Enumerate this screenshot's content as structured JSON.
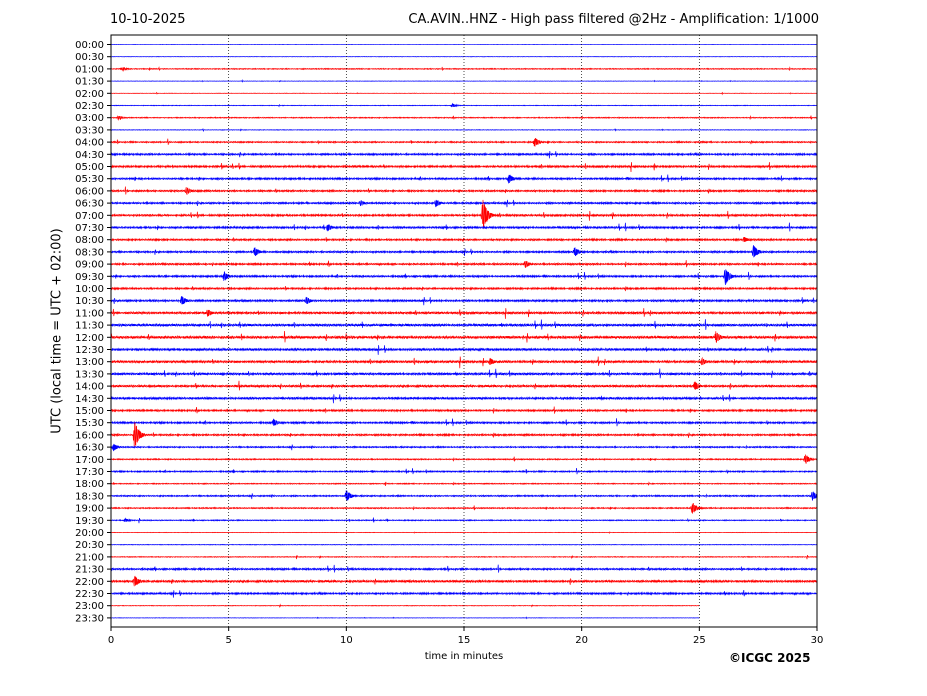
{
  "header": {
    "date": "10-10-2025",
    "title": "CA.AVIN..HNZ - High pass filtered @2Hz - Amplification: 1/1000"
  },
  "footer": {
    "credit": "©ICGC 2025"
  },
  "colors": {
    "trace_a": "#ff0000",
    "trace_b": "#0000ff",
    "grid": "#000000",
    "axes": "#000000"
  },
  "chart_data": {
    "type": "helicorder",
    "xlabel": "time in minutes",
    "ylabel": "UTC (local time = UTC + 02:00)",
    "xlim": [
      0,
      30
    ],
    "xticks": [
      0,
      5,
      10,
      15,
      20,
      25,
      30
    ],
    "grid": "vertical dotted lines at 5-minute intervals",
    "rows": [
      "00:00",
      "00:30",
      "01:00",
      "01:30",
      "02:00",
      "02:30",
      "03:00",
      "03:30",
      "04:00",
      "04:30",
      "05:00",
      "05:30",
      "06:00",
      "06:30",
      "07:00",
      "07:30",
      "08:00",
      "08:30",
      "09:00",
      "09:30",
      "10:00",
      "10:30",
      "11:00",
      "11:30",
      "12:00",
      "12:30",
      "13:00",
      "13:30",
      "14:00",
      "14:30",
      "15:00",
      "15:30",
      "16:00",
      "16:30",
      "17:00",
      "17:30",
      "18:00",
      "18:30",
      "19:00",
      "19:30",
      "20:00",
      "20:30",
      "21:00",
      "21:30",
      "22:00",
      "22:30",
      "23:00",
      "23:30"
    ],
    "row_colors": [
      "trace_b",
      "trace_b",
      "trace_a",
      "trace_b",
      "trace_a",
      "trace_b",
      "trace_a",
      "trace_b",
      "trace_a",
      "trace_b",
      "trace_a",
      "trace_b",
      "trace_a",
      "trace_b",
      "trace_a",
      "trace_b",
      "trace_a",
      "trace_b",
      "trace_a",
      "trace_b",
      "trace_a",
      "trace_b",
      "trace_a",
      "trace_b",
      "trace_a",
      "trace_b",
      "trace_a",
      "trace_b",
      "trace_a",
      "trace_b",
      "trace_a",
      "trace_b",
      "trace_a",
      "trace_b",
      "trace_a",
      "trace_b",
      "trace_a",
      "trace_b",
      "trace_a",
      "trace_b",
      "trace_a",
      "trace_b",
      "trace_a",
      "trace_b",
      "trace_a",
      "trace_b",
      "trace_a",
      "trace_b"
    ],
    "noise_level": [
      0.1,
      0.2,
      0.5,
      0.2,
      0.2,
      0.3,
      0.5,
      0.3,
      0.7,
      0.9,
      1.0,
      0.9,
      0.9,
      0.9,
      1.0,
      1.0,
      0.9,
      0.9,
      0.9,
      0.9,
      0.9,
      1.0,
      1.1,
      1.2,
      1.3,
      1.2,
      1.2,
      1.1,
      1.1,
      1.1,
      0.9,
      0.9,
      0.9,
      0.7,
      0.6,
      0.7,
      0.5,
      0.7,
      0.6,
      0.5,
      0.2,
      0.3,
      0.4,
      0.9,
      1.1,
      0.9,
      0.3,
      0.2
    ],
    "row_end_minutes": [
      30,
      30,
      30,
      30,
      30,
      30,
      30,
      30,
      30,
      30,
      30,
      30,
      30,
      30,
      30,
      30,
      30,
      30,
      30,
      30,
      30,
      30,
      30,
      30,
      30,
      30,
      30,
      30,
      30,
      30,
      30,
      30,
      30,
      30,
      30,
      30,
      30,
      30,
      30,
      30,
      30,
      30,
      30,
      30,
      30,
      30,
      25,
      25
    ],
    "events": [
      {
        "row": "01:00",
        "minute": 0.5,
        "amp": 2
      },
      {
        "row": "02:30",
        "minute": 14.5,
        "amp": 2
      },
      {
        "row": "03:00",
        "minute": 0.3,
        "amp": 2
      },
      {
        "row": "04:00",
        "minute": 18.0,
        "amp": 5
      },
      {
        "row": "05:30",
        "minute": 16.9,
        "amp": 5
      },
      {
        "row": "06:00",
        "minute": 3.2,
        "amp": 4
      },
      {
        "row": "06:30",
        "minute": 10.6,
        "amp": 3
      },
      {
        "row": "06:30",
        "minute": 13.8,
        "amp": 4
      },
      {
        "row": "07:00",
        "minute": 15.8,
        "amp": 16
      },
      {
        "row": "07:30",
        "minute": 9.2,
        "amp": 4
      },
      {
        "row": "08:00",
        "minute": 26.9,
        "amp": 3
      },
      {
        "row": "08:30",
        "minute": 6.1,
        "amp": 5
      },
      {
        "row": "08:30",
        "minute": 19.7,
        "amp": 5
      },
      {
        "row": "08:30",
        "minute": 27.3,
        "amp": 7
      },
      {
        "row": "09:00",
        "minute": 17.6,
        "amp": 4
      },
      {
        "row": "09:30",
        "minute": 4.8,
        "amp": 5
      },
      {
        "row": "09:30",
        "minute": 26.1,
        "amp": 9
      },
      {
        "row": "10:30",
        "minute": 3.0,
        "amp": 5
      },
      {
        "row": "10:30",
        "minute": 8.3,
        "amp": 4
      },
      {
        "row": "11:00",
        "minute": 4.1,
        "amp": 4
      },
      {
        "row": "12:00",
        "minute": 25.7,
        "amp": 6
      },
      {
        "row": "13:00",
        "minute": 16.1,
        "amp": 4
      },
      {
        "row": "13:00",
        "minute": 25.1,
        "amp": 4
      },
      {
        "row": "14:00",
        "minute": 24.8,
        "amp": 5
      },
      {
        "row": "15:30",
        "minute": 6.9,
        "amp": 4
      },
      {
        "row": "16:00",
        "minute": 1.0,
        "amp": 14
      },
      {
        "row": "16:30",
        "minute": 0.1,
        "amp": 4
      },
      {
        "row": "17:00",
        "minute": 29.5,
        "amp": 5
      },
      {
        "row": "18:30",
        "minute": 10.0,
        "amp": 6
      },
      {
        "row": "18:30",
        "minute": 29.8,
        "amp": 5
      },
      {
        "row": "19:00",
        "minute": 24.7,
        "amp": 6
      },
      {
        "row": "19:30",
        "minute": 0.6,
        "amp": 2
      },
      {
        "row": "22:00",
        "minute": 1.0,
        "amp": 6
      }
    ]
  }
}
